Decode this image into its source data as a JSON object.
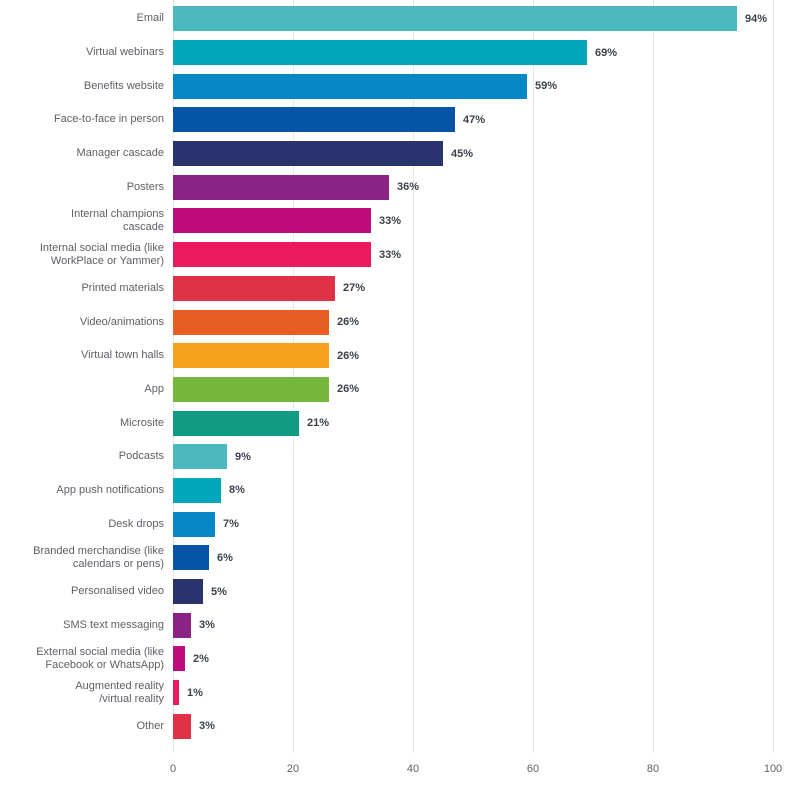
{
  "chart_data": {
    "type": "bar",
    "orientation": "horizontal",
    "title": "",
    "xlabel": "",
    "ylabel": "",
    "categories": [
      "Email",
      "Virtual webinars",
      "Benefits website",
      "Face-to-face in person",
      "Manager cascade",
      "Posters",
      "Internal champions\ncascade",
      "Internal social media (like\nWorkPlace or Yammer)",
      "Printed materials",
      "Video/animations",
      "Virtual town halls",
      "App",
      "Microsite",
      "Podcasts",
      "App push notifications",
      "Desk drops",
      "Branded merchandise (like\ncalendars or pens)",
      "Personalised video",
      "SMS text messaging",
      "External social media (like\nFacebook or WhatsApp)",
      "Augmented reality\n/virtual reality",
      "Other"
    ],
    "values": [
      94,
      69,
      59,
      47,
      45,
      36,
      33,
      33,
      27,
      26,
      26,
      26,
      21,
      9,
      8,
      7,
      6,
      5,
      3,
      2,
      1,
      3
    ],
    "value_labels": [
      "94%",
      "69%",
      "59%",
      "47%",
      "45%",
      "36%",
      "33%",
      "33%",
      "27%",
      "26%",
      "26%",
      "26%",
      "21%",
      "9%",
      "8%",
      "7%",
      "6%",
      "5%",
      "3%",
      "2%",
      "1%",
      "3%"
    ],
    "bar_colors": [
      "#4BB8BD",
      "#00A7BB",
      "#0788C6",
      "#0554A6",
      "#2B336E",
      "#8B2385",
      "#C00B7E",
      "#EA1A5D",
      "#E03247",
      "#E85D22",
      "#F4A11D",
      "#74B73C",
      "#0F9B84",
      "#4BB8BD",
      "#00A7BB",
      "#0788C6",
      "#0554A6",
      "#2B336E",
      "#8B2385",
      "#C00B7E",
      "#EA1A5D",
      "#E03247"
    ],
    "xlim": [
      0,
      100
    ],
    "x_ticks": [
      "0",
      "20",
      "40",
      "60",
      "80",
      "100"
    ],
    "grid": "vertical",
    "legend": "none",
    "style": {
      "background": "#FFFFFF",
      "gridline_color": "#E7E8EA",
      "category_label_color": "#5E6066",
      "value_label_color": "#3C414C",
      "tick_label_color": "#5E6066"
    }
  }
}
